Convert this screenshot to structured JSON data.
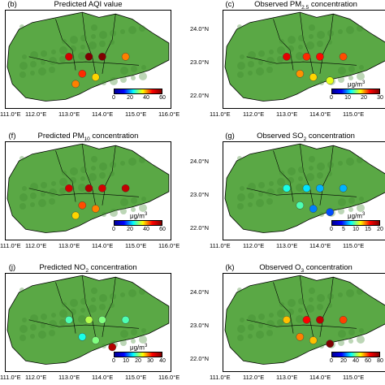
{
  "panels": [
    {
      "letter": "(b)",
      "title": "Predicted AQI value",
      "unit": "",
      "scale": {
        "min": 0,
        "max": 60,
        "ticks": [
          "0",
          "20",
          "40",
          "60"
        ]
      },
      "stations": [
        [
          "112.9",
          "23.1",
          55
        ],
        [
          "113.5",
          "23.1",
          70
        ],
        [
          "113.9",
          "23.1",
          60
        ],
        [
          "114.6",
          "23.1",
          45
        ],
        [
          "113.3",
          "22.6",
          50
        ],
        [
          "113.7",
          "22.5",
          40
        ],
        [
          "113.1",
          "22.3",
          45
        ]
      ]
    },
    {
      "letter": "(c)",
      "title": "Observed PM",
      "sub": "2.5",
      "title_tail": " concentration",
      "unit": "μg/m",
      "unit_sup": "3",
      "scale": {
        "min": 0,
        "max": 30,
        "ticks": [
          "0",
          "10",
          "20",
          "30"
        ]
      },
      "stations": [
        [
          "112.9",
          "23.1",
          27
        ],
        [
          "113.5",
          "23.1",
          25
        ],
        [
          "113.9",
          "23.1",
          26
        ],
        [
          "114.6",
          "23.1",
          24
        ],
        [
          "113.3",
          "22.6",
          22
        ],
        [
          "113.7",
          "22.5",
          20
        ],
        [
          "114.2",
          "22.4",
          18
        ]
      ]
    },
    {
      "letter": "(f)",
      "title": "Predicted PM",
      "sub": "10",
      "title_tail": " concentration",
      "unit": "μg/m",
      "unit_sup": "3",
      "scale": {
        "min": 0,
        "max": 60,
        "ticks": [
          "0",
          "20",
          "40",
          "60"
        ]
      },
      "stations": [
        [
          "112.9",
          "23.1",
          55
        ],
        [
          "113.5",
          "23.1",
          57
        ],
        [
          "113.9",
          "23.1",
          55
        ],
        [
          "114.6",
          "23.1",
          56
        ],
        [
          "113.3",
          "22.6",
          48
        ],
        [
          "113.7",
          "22.5",
          45
        ],
        [
          "113.1",
          "22.3",
          40
        ]
      ]
    },
    {
      "letter": "(g)",
      "title": "Observed SO",
      "sub": "2",
      "title_tail": " concentration",
      "unit": "μg/m",
      "unit_sup": "3",
      "scale": {
        "min": 0,
        "max": 20,
        "ticks": [
          "0",
          "5",
          "10",
          "15",
          "20"
        ]
      },
      "stations": [
        [
          "112.9",
          "23.1",
          8
        ],
        [
          "113.5",
          "23.1",
          7
        ],
        [
          "113.9",
          "23.1",
          6
        ],
        [
          "114.6",
          "23.1",
          6
        ],
        [
          "113.3",
          "22.6",
          9
        ],
        [
          "113.7",
          "22.5",
          5
        ],
        [
          "114.2",
          "22.4",
          4
        ]
      ]
    },
    {
      "letter": "(j)",
      "title": "Predicted NO",
      "sub": "2",
      "title_tail": " concentration",
      "unit": "μg/m",
      "unit_sup": "3",
      "scale": {
        "min": 0,
        "max": 40,
        "ticks": [
          "0",
          "10",
          "20",
          "30",
          "40"
        ]
      },
      "stations": [
        [
          "112.9",
          "23.1",
          18
        ],
        [
          "113.5",
          "23.1",
          22
        ],
        [
          "113.9",
          "23.1",
          20
        ],
        [
          "114.6",
          "23.1",
          18
        ],
        [
          "113.3",
          "22.6",
          16
        ],
        [
          "113.7",
          "22.5",
          20
        ],
        [
          "114.2",
          "22.3",
          38
        ]
      ]
    },
    {
      "letter": "(k)",
      "title": "Observed O",
      "sub": "3",
      "title_tail": " concentration",
      "unit": "",
      "scale": {
        "min": 0,
        "max": 80,
        "ticks": [
          "0",
          "20",
          "40",
          "60",
          "80"
        ]
      },
      "stations": [
        [
          "112.9",
          "23.1",
          55
        ],
        [
          "113.5",
          "23.1",
          70
        ],
        [
          "113.9",
          "23.1",
          75
        ],
        [
          "114.6",
          "23.1",
          65
        ],
        [
          "113.3",
          "22.6",
          60
        ],
        [
          "113.7",
          "22.5",
          55
        ],
        [
          "114.2",
          "22.4",
          80
        ]
      ]
    }
  ],
  "axis_x_labels": [
    "111.0°E",
    "112.0°E",
    "113.0°E",
    "114.0°E",
    "115.0°E",
    "116.0°E"
  ],
  "axis_x_labels_right": [
    "111.0°E",
    "112.0°E",
    "113.0°E",
    "114.0°E",
    "115.0°E"
  ],
  "axis_y_labels": [
    "24.0°N",
    "23.0°N",
    "22.0°N"
  ],
  "colors": {
    "land": "#5aa845",
    "land_dark": "#3f8a2f",
    "ocean": "#ffffff",
    "boundary": "#000000"
  }
}
